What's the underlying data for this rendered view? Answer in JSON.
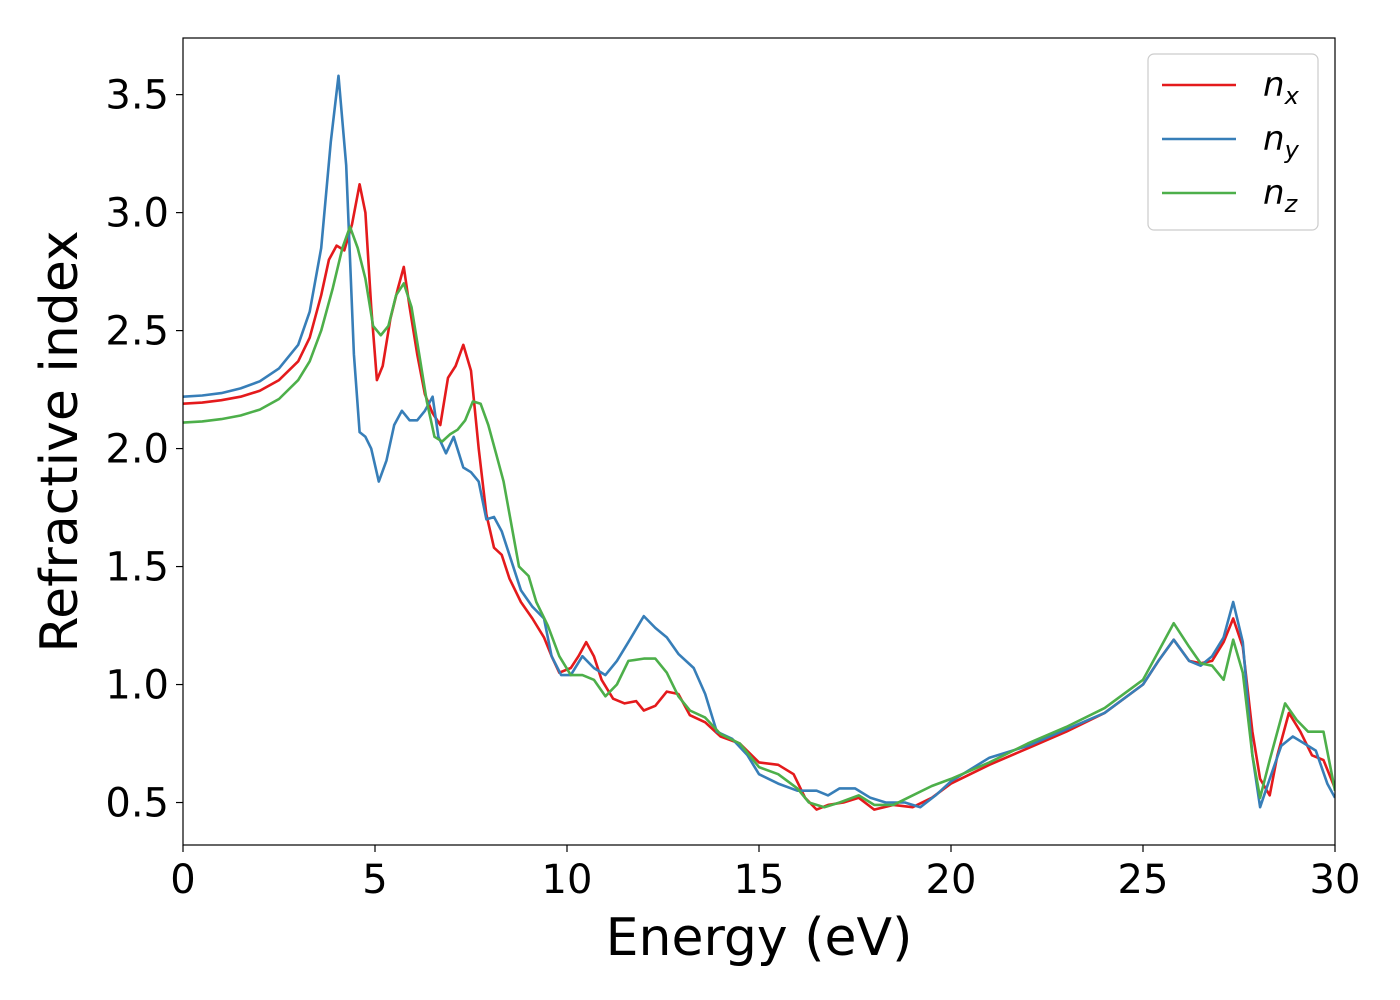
{
  "chart_data": {
    "type": "line",
    "xlabel": "Energy (eV)",
    "ylabel": "Refractive index",
    "xlim": [
      0,
      30
    ],
    "ylim": [
      0.32,
      3.74
    ],
    "xticks": [
      0,
      5,
      10,
      15,
      20,
      25,
      30
    ],
    "yticks": [
      0.5,
      1.0,
      1.5,
      2.0,
      2.5,
      3.0,
      3.5
    ],
    "xtick_labels": [
      "0",
      "5",
      "10",
      "15",
      "20",
      "25",
      "30"
    ],
    "ytick_labels": [
      "0.5",
      "1.0",
      "1.5",
      "2.0",
      "2.5",
      "3.0",
      "3.5"
    ],
    "grid": false,
    "legend_position": "top-right",
    "series": [
      {
        "name": "n_x",
        "label_base": "n",
        "label_sub": "x",
        "color": "#e41a1c",
        "points": [
          [
            0,
            2.19
          ],
          [
            0.5,
            2.195
          ],
          [
            1,
            2.205
          ],
          [
            1.5,
            2.22
          ],
          [
            2,
            2.245
          ],
          [
            2.5,
            2.29
          ],
          [
            3,
            2.37
          ],
          [
            3.3,
            2.47
          ],
          [
            3.6,
            2.65
          ],
          [
            3.8,
            2.8
          ],
          [
            4.0,
            2.86
          ],
          [
            4.2,
            2.84
          ],
          [
            4.4,
            2.95
          ],
          [
            4.6,
            3.12
          ],
          [
            4.75,
            3.0
          ],
          [
            4.9,
            2.6
          ],
          [
            5.05,
            2.29
          ],
          [
            5.2,
            2.35
          ],
          [
            5.4,
            2.55
          ],
          [
            5.6,
            2.68
          ],
          [
            5.75,
            2.77
          ],
          [
            5.9,
            2.6
          ],
          [
            6.1,
            2.4
          ],
          [
            6.3,
            2.23
          ],
          [
            6.5,
            2.15
          ],
          [
            6.7,
            2.1
          ],
          [
            6.9,
            2.3
          ],
          [
            7.1,
            2.35
          ],
          [
            7.3,
            2.44
          ],
          [
            7.5,
            2.33
          ],
          [
            7.7,
            2.0
          ],
          [
            7.9,
            1.72
          ],
          [
            8.1,
            1.58
          ],
          [
            8.3,
            1.55
          ],
          [
            8.5,
            1.45
          ],
          [
            8.8,
            1.35
          ],
          [
            9.1,
            1.28
          ],
          [
            9.4,
            1.2
          ],
          [
            9.6,
            1.12
          ],
          [
            9.8,
            1.05
          ],
          [
            10.1,
            1.07
          ],
          [
            10.3,
            1.12
          ],
          [
            10.5,
            1.18
          ],
          [
            10.7,
            1.12
          ],
          [
            10.9,
            1.02
          ],
          [
            11.2,
            0.94
          ],
          [
            11.5,
            0.92
          ],
          [
            11.8,
            0.93
          ],
          [
            12.0,
            0.89
          ],
          [
            12.3,
            0.91
          ],
          [
            12.6,
            0.97
          ],
          [
            12.9,
            0.96
          ],
          [
            13.2,
            0.87
          ],
          [
            13.6,
            0.84
          ],
          [
            14.0,
            0.78
          ],
          [
            14.5,
            0.75
          ],
          [
            15.0,
            0.67
          ],
          [
            15.5,
            0.66
          ],
          [
            15.9,
            0.62
          ],
          [
            16.2,
            0.52
          ],
          [
            16.5,
            0.47
          ],
          [
            16.8,
            0.49
          ],
          [
            17.2,
            0.5
          ],
          [
            17.6,
            0.52
          ],
          [
            18.0,
            0.47
          ],
          [
            18.5,
            0.49
          ],
          [
            19.0,
            0.48
          ],
          [
            19.5,
            0.52
          ],
          [
            20.0,
            0.58
          ],
          [
            21,
            0.66
          ],
          [
            22,
            0.73
          ],
          [
            23,
            0.8
          ],
          [
            24,
            0.88
          ],
          [
            25,
            1.0
          ],
          [
            25.4,
            1.1
          ],
          [
            25.8,
            1.19
          ],
          [
            26.2,
            1.1
          ],
          [
            26.5,
            1.09
          ],
          [
            26.8,
            1.1
          ],
          [
            27.1,
            1.18
          ],
          [
            27.35,
            1.28
          ],
          [
            27.6,
            1.16
          ],
          [
            27.85,
            0.8
          ],
          [
            28.05,
            0.6
          ],
          [
            28.3,
            0.53
          ],
          [
            28.5,
            0.7
          ],
          [
            28.8,
            0.88
          ],
          [
            29.1,
            0.8
          ],
          [
            29.4,
            0.7
          ],
          [
            29.7,
            0.68
          ],
          [
            30.0,
            0.56
          ]
        ]
      },
      {
        "name": "n_y",
        "label_base": "n",
        "label_sub": "y",
        "color": "#377eb8",
        "points": [
          [
            0,
            2.22
          ],
          [
            0.5,
            2.225
          ],
          [
            1,
            2.235
          ],
          [
            1.5,
            2.255
          ],
          [
            2,
            2.285
          ],
          [
            2.5,
            2.34
          ],
          [
            3,
            2.44
          ],
          [
            3.3,
            2.58
          ],
          [
            3.6,
            2.85
          ],
          [
            3.85,
            3.3
          ],
          [
            4.05,
            3.58
          ],
          [
            4.25,
            3.2
          ],
          [
            4.45,
            2.4
          ],
          [
            4.6,
            2.07
          ],
          [
            4.75,
            2.05
          ],
          [
            4.9,
            2.0
          ],
          [
            5.1,
            1.86
          ],
          [
            5.3,
            1.95
          ],
          [
            5.5,
            2.1
          ],
          [
            5.7,
            2.16
          ],
          [
            5.9,
            2.12
          ],
          [
            6.1,
            2.12
          ],
          [
            6.3,
            2.16
          ],
          [
            6.5,
            2.22
          ],
          [
            6.65,
            2.05
          ],
          [
            6.85,
            1.98
          ],
          [
            7.05,
            2.05
          ],
          [
            7.3,
            1.92
          ],
          [
            7.5,
            1.9
          ],
          [
            7.7,
            1.86
          ],
          [
            7.9,
            1.7
          ],
          [
            8.1,
            1.71
          ],
          [
            8.3,
            1.65
          ],
          [
            8.5,
            1.55
          ],
          [
            8.8,
            1.4
          ],
          [
            9.1,
            1.33
          ],
          [
            9.4,
            1.28
          ],
          [
            9.6,
            1.12
          ],
          [
            9.85,
            1.04
          ],
          [
            10.1,
            1.04
          ],
          [
            10.4,
            1.12
          ],
          [
            10.7,
            1.07
          ],
          [
            11.0,
            1.04
          ],
          [
            11.3,
            1.1
          ],
          [
            11.6,
            1.18
          ],
          [
            12.0,
            1.29
          ],
          [
            12.3,
            1.24
          ],
          [
            12.6,
            1.2
          ],
          [
            12.9,
            1.13
          ],
          [
            13.3,
            1.07
          ],
          [
            13.6,
            0.96
          ],
          [
            13.9,
            0.8
          ],
          [
            14.3,
            0.77
          ],
          [
            14.7,
            0.7
          ],
          [
            15.0,
            0.62
          ],
          [
            15.5,
            0.58
          ],
          [
            16.0,
            0.55
          ],
          [
            16.5,
            0.55
          ],
          [
            16.8,
            0.53
          ],
          [
            17.1,
            0.56
          ],
          [
            17.5,
            0.56
          ],
          [
            17.9,
            0.52
          ],
          [
            18.3,
            0.5
          ],
          [
            18.8,
            0.5
          ],
          [
            19.2,
            0.48
          ],
          [
            19.6,
            0.53
          ],
          [
            20.0,
            0.59
          ],
          [
            21,
            0.69
          ],
          [
            22,
            0.74
          ],
          [
            23,
            0.81
          ],
          [
            24,
            0.88
          ],
          [
            25,
            1.0
          ],
          [
            25.4,
            1.1
          ],
          [
            25.8,
            1.19
          ],
          [
            26.2,
            1.1
          ],
          [
            26.5,
            1.08
          ],
          [
            26.8,
            1.12
          ],
          [
            27.1,
            1.2
          ],
          [
            27.35,
            1.35
          ],
          [
            27.6,
            1.18
          ],
          [
            27.85,
            0.7
          ],
          [
            28.05,
            0.48
          ],
          [
            28.3,
            0.6
          ],
          [
            28.6,
            0.74
          ],
          [
            28.9,
            0.78
          ],
          [
            29.2,
            0.75
          ],
          [
            29.5,
            0.72
          ],
          [
            29.8,
            0.58
          ],
          [
            30.0,
            0.52
          ]
        ]
      },
      {
        "name": "n_z",
        "label_base": "n",
        "label_sub": "z",
        "color": "#4daf4a",
        "points": [
          [
            0,
            2.11
          ],
          [
            0.5,
            2.115
          ],
          [
            1,
            2.125
          ],
          [
            1.5,
            2.14
          ],
          [
            2,
            2.165
          ],
          [
            2.5,
            2.21
          ],
          [
            3,
            2.29
          ],
          [
            3.3,
            2.37
          ],
          [
            3.6,
            2.5
          ],
          [
            3.9,
            2.68
          ],
          [
            4.15,
            2.85
          ],
          [
            4.35,
            2.94
          ],
          [
            4.55,
            2.85
          ],
          [
            4.75,
            2.72
          ],
          [
            4.95,
            2.52
          ],
          [
            5.15,
            2.48
          ],
          [
            5.35,
            2.52
          ],
          [
            5.55,
            2.65
          ],
          [
            5.75,
            2.7
          ],
          [
            5.95,
            2.6
          ],
          [
            6.15,
            2.4
          ],
          [
            6.35,
            2.2
          ],
          [
            6.55,
            2.05
          ],
          [
            6.75,
            2.03
          ],
          [
            6.95,
            2.06
          ],
          [
            7.15,
            2.08
          ],
          [
            7.35,
            2.12
          ],
          [
            7.55,
            2.2
          ],
          [
            7.75,
            2.19
          ],
          [
            7.95,
            2.1
          ],
          [
            8.15,
            1.98
          ],
          [
            8.35,
            1.86
          ],
          [
            8.55,
            1.68
          ],
          [
            8.75,
            1.5
          ],
          [
            9.0,
            1.46
          ],
          [
            9.2,
            1.35
          ],
          [
            9.5,
            1.25
          ],
          [
            9.8,
            1.12
          ],
          [
            10.1,
            1.04
          ],
          [
            10.4,
            1.04
          ],
          [
            10.7,
            1.02
          ],
          [
            11.0,
            0.95
          ],
          [
            11.3,
            1.0
          ],
          [
            11.6,
            1.1
          ],
          [
            12.0,
            1.11
          ],
          [
            12.3,
            1.11
          ],
          [
            12.6,
            1.05
          ],
          [
            12.9,
            0.95
          ],
          [
            13.2,
            0.89
          ],
          [
            13.6,
            0.86
          ],
          [
            14.0,
            0.79
          ],
          [
            14.5,
            0.75
          ],
          [
            15.0,
            0.65
          ],
          [
            15.5,
            0.62
          ],
          [
            16.0,
            0.56
          ],
          [
            16.3,
            0.5
          ],
          [
            16.7,
            0.48
          ],
          [
            17.1,
            0.5
          ],
          [
            17.6,
            0.53
          ],
          [
            18.0,
            0.49
          ],
          [
            18.5,
            0.49
          ],
          [
            19.0,
            0.53
          ],
          [
            19.5,
            0.57
          ],
          [
            20.0,
            0.6
          ],
          [
            21,
            0.67
          ],
          [
            22,
            0.75
          ],
          [
            23,
            0.82
          ],
          [
            24,
            0.9
          ],
          [
            25,
            1.02
          ],
          [
            25.4,
            1.14
          ],
          [
            25.8,
            1.26
          ],
          [
            26.2,
            1.16
          ],
          [
            26.5,
            1.09
          ],
          [
            26.8,
            1.08
          ],
          [
            27.1,
            1.02
          ],
          [
            27.35,
            1.19
          ],
          [
            27.6,
            1.05
          ],
          [
            27.85,
            0.7
          ],
          [
            28.05,
            0.52
          ],
          [
            28.3,
            0.68
          ],
          [
            28.7,
            0.92
          ],
          [
            29.0,
            0.85
          ],
          [
            29.3,
            0.8
          ],
          [
            29.7,
            0.8
          ],
          [
            30.0,
            0.55
          ]
        ]
      }
    ]
  }
}
